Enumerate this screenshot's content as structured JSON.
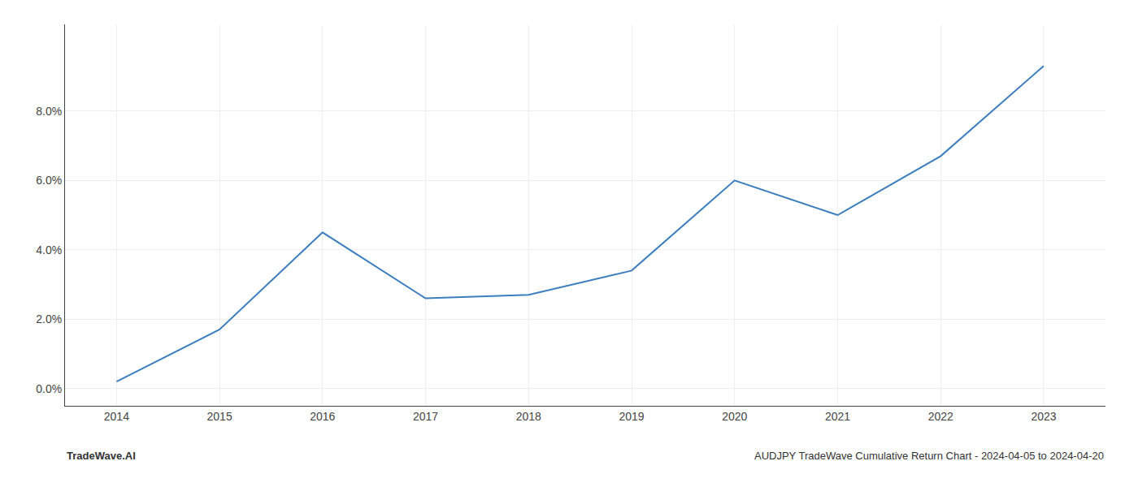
{
  "chart_data": {
    "type": "line",
    "x": [
      2014,
      2015,
      2016,
      2017,
      2018,
      2019,
      2020,
      2021,
      2022,
      2023
    ],
    "values": [
      0.002,
      0.017,
      0.045,
      0.026,
      0.027,
      0.034,
      0.06,
      0.05,
      0.067,
      0.093
    ],
    "color": "#3a7ebf",
    "xlim": [
      2013.5,
      2023.6
    ],
    "xticks": [
      2014,
      2015,
      2016,
      2017,
      2018,
      2019,
      2020,
      2021,
      2022,
      2023
    ],
    "ylim": [
      -0.005,
      0.105
    ],
    "yticks": [
      {
        "value": 0.0,
        "label": "0.0%"
      },
      {
        "value": 0.02,
        "label": "2.0%"
      },
      {
        "value": 0.04,
        "label": "4.0%"
      },
      {
        "value": 0.06,
        "label": "6.0%"
      },
      {
        "value": 0.08,
        "label": "8.0%"
      }
    ],
    "grid": true,
    "annotations": [
      "TradeWave.AI",
      "AUDJPY TradeWave Cumulative Return Chart - 2024-04-05 to 2024-04-20"
    ]
  }
}
